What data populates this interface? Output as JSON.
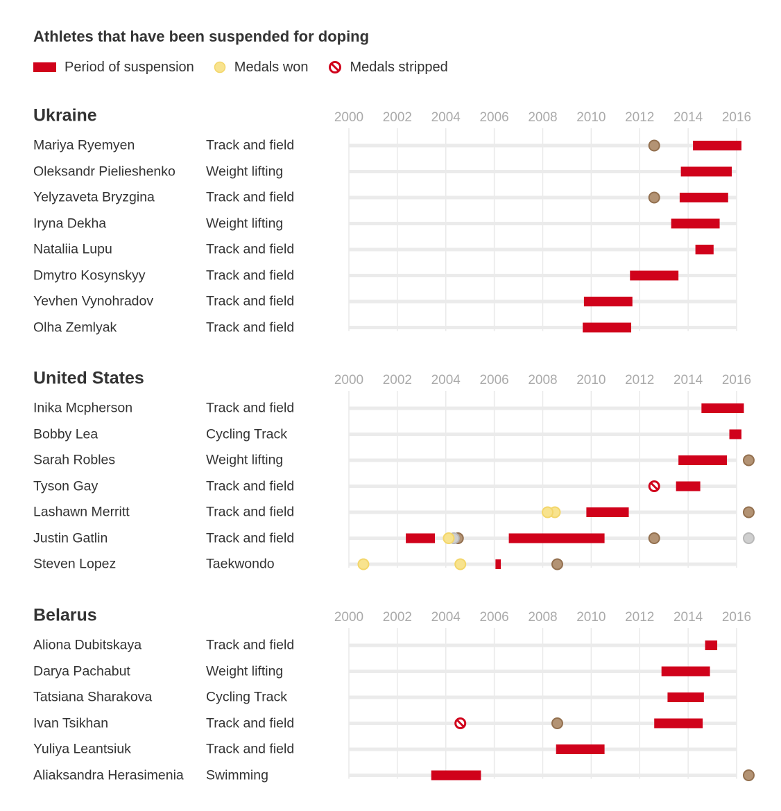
{
  "title": "Athletes that have been suspended for doping",
  "legend": {
    "suspension": "Period of suspension",
    "won": "Medals won",
    "stripped": "Medals stripped"
  },
  "colors": {
    "suspension": "#d0021b",
    "gold": "#f8e38e",
    "silver": "#cfcfcf",
    "bronze": "#b39374",
    "track": "#ebebeb",
    "grid": "#e9e9e9",
    "tick": "#aaaaaa"
  },
  "chart_data": {
    "type": "timeline",
    "xlim": [
      2000,
      2016
    ],
    "ticks": [
      2000,
      2002,
      2004,
      2006,
      2008,
      2010,
      2012,
      2014,
      2016
    ],
    "tick_labels": [
      "2000",
      "2002",
      "2004",
      "2006",
      "2008",
      "2010",
      "2012",
      "2014",
      "2016"
    ],
    "sections": [
      {
        "country": "Ukraine",
        "athletes": [
          {
            "name": "Mariya Ryemyen",
            "sport": "Track and field",
            "suspensions": [
              [
                2014.2,
                2016.2
              ]
            ],
            "medals": [
              {
                "year": 2012.6,
                "type": "bronze"
              }
            ]
          },
          {
            "name": "Oleksandr Pielieshenko",
            "sport": "Weight lifting",
            "suspensions": [
              [
                2013.7,
                2015.8
              ]
            ],
            "medals": []
          },
          {
            "name": "Yelyzaveta Bryzgina",
            "sport": "Track and field",
            "suspensions": [
              [
                2013.65,
                2015.65
              ]
            ],
            "medals": [
              {
                "year": 2012.6,
                "type": "bronze"
              }
            ]
          },
          {
            "name": "Iryna Dekha",
            "sport": "Weight lifting",
            "suspensions": [
              [
                2013.3,
                2015.3
              ]
            ],
            "medals": []
          },
          {
            "name": "Nataliia Lupu",
            "sport": "Track and field",
            "suspensions": [
              [
                2014.3,
                2015.05
              ]
            ],
            "medals": []
          },
          {
            "name": "Dmytro Kosynskyy",
            "sport": "Track and field",
            "suspensions": [
              [
                2011.6,
                2013.6
              ]
            ],
            "medals": []
          },
          {
            "name": "Yevhen Vynohradov",
            "sport": "Track and field",
            "suspensions": [
              [
                2009.7,
                2011.7
              ]
            ],
            "medals": []
          },
          {
            "name": "Olha Zemlyak",
            "sport": "Track and field",
            "suspensions": [
              [
                2009.65,
                2011.65
              ]
            ],
            "medals": []
          }
        ]
      },
      {
        "country": "United States",
        "athletes": [
          {
            "name": "Inika Mcpherson",
            "sport": "Track and field",
            "suspensions": [
              [
                2014.55,
                2016.3
              ]
            ],
            "medals": []
          },
          {
            "name": "Bobby Lea",
            "sport": "Cycling Track",
            "suspensions": [
              [
                2015.7,
                2016.2
              ]
            ],
            "medals": []
          },
          {
            "name": "Sarah Robles",
            "sport": "Weight lifting",
            "suspensions": [
              [
                2013.6,
                2015.6
              ]
            ],
            "medals": [
              {
                "year": 2016.5,
                "type": "bronze"
              }
            ]
          },
          {
            "name": "Tyson Gay",
            "sport": "Track and field",
            "suspensions": [
              [
                2013.5,
                2014.5
              ]
            ],
            "medals": [
              {
                "year": 2012.6,
                "type": "stripped"
              }
            ]
          },
          {
            "name": "Lashawn Merritt",
            "sport": "Track and field",
            "suspensions": [
              [
                2009.8,
                2011.55
              ]
            ],
            "medals": [
              {
                "year": 2008.5,
                "type": "gold"
              },
              {
                "year": 2008.2,
                "type": "gold"
              },
              {
                "year": 2016.5,
                "type": "bronze"
              }
            ]
          },
          {
            "name": "Justin Gatlin",
            "sport": "Track and field",
            "suspensions": [
              [
                2002.35,
                2003.55
              ],
              [
                2006.6,
                2010.55
              ]
            ],
            "medals": [
              {
                "year": 2004.5,
                "type": "bronze"
              },
              {
                "year": 2004.33,
                "type": "silver"
              },
              {
                "year": 2004.12,
                "type": "gold"
              },
              {
                "year": 2012.6,
                "type": "bronze"
              },
              {
                "year": 2016.5,
                "type": "silver"
              }
            ]
          },
          {
            "name": "Steven Lopez",
            "sport": "Taekwondo",
            "suspensions": [
              [
                2006.05,
                2006.27
              ]
            ],
            "medals": [
              {
                "year": 2000.6,
                "type": "gold"
              },
              {
                "year": 2004.6,
                "type": "gold"
              },
              {
                "year": 2008.6,
                "type": "bronze"
              }
            ]
          }
        ]
      },
      {
        "country": "Belarus",
        "athletes": [
          {
            "name": "Aliona Dubitskaya",
            "sport": "Track and field",
            "suspensions": [
              [
                2014.7,
                2015.2
              ]
            ],
            "medals": []
          },
          {
            "name": "Darya Pachabut",
            "sport": "Weight lifting",
            "suspensions": [
              [
                2012.9,
                2014.9
              ]
            ],
            "medals": []
          },
          {
            "name": "Tatsiana Sharakova",
            "sport": "Cycling Track",
            "suspensions": [
              [
                2013.15,
                2014.65
              ]
            ],
            "medals": []
          },
          {
            "name": "Ivan Tsikhan",
            "sport": "Track and field",
            "suspensions": [
              [
                2012.6,
                2014.6
              ]
            ],
            "medals": [
              {
                "year": 2004.6,
                "type": "stripped"
              },
              {
                "year": 2008.6,
                "type": "bronze"
              }
            ]
          },
          {
            "name": "Yuliya Leantsiuk",
            "sport": "Track and field",
            "suspensions": [
              [
                2008.55,
                2010.55
              ]
            ],
            "medals": []
          },
          {
            "name": "Aliaksandra Herasimenia",
            "sport": "Swimming",
            "suspensions": [
              [
                2003.4,
                2005.45
              ]
            ],
            "medals": [
              {
                "year": 2016.5,
                "type": "bronze"
              }
            ]
          }
        ]
      }
    ]
  }
}
